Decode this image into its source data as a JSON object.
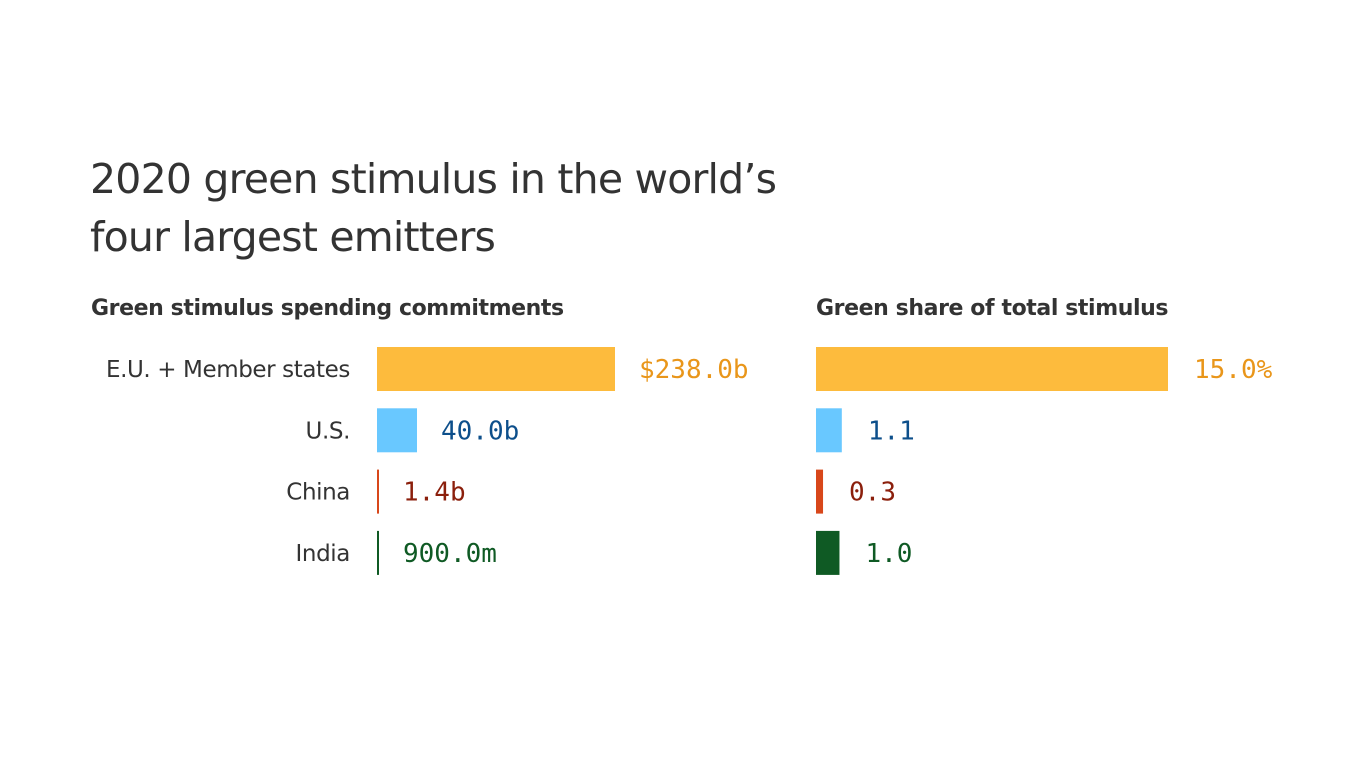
{
  "title": "2020 green stimulus in the world’s four largest emitters",
  "chart_data": [
    {
      "type": "bar",
      "orientation": "horizontal",
      "title": "Green stimulus spending commitments",
      "unit": "USD",
      "categories": [
        "E.U. + Member states",
        "U.S.",
        "China",
        "India"
      ],
      "values": [
        238000000000,
        40000000000,
        1400000000,
        900000000
      ],
      "value_labels": [
        "$238.0b",
        "40.0b",
        "1.4b",
        "900.0m"
      ],
      "colors": [
        "#FDBB3D",
        "#69C8FF",
        "#D8471A",
        "#0F5A24"
      ],
      "label_colors": [
        "#E9961A",
        "#0D4F8B",
        "#8B1F0C",
        "#0F5A24"
      ]
    },
    {
      "type": "bar",
      "orientation": "horizontal",
      "title": "Green share of total stimulus",
      "unit": "%",
      "categories": [
        "E.U. + Member states",
        "U.S.",
        "China",
        "India"
      ],
      "values": [
        15.0,
        1.1,
        0.3,
        1.0
      ],
      "value_labels": [
        "15.0%",
        "1.1",
        "0.3",
        "1.0"
      ],
      "colors": [
        "#FDBB3D",
        "#69C8FF",
        "#D8471A",
        "#0F5A24"
      ],
      "label_colors": [
        "#E9961A",
        "#0D4F8B",
        "#8B1F0C",
        "#0F5A24"
      ]
    }
  ]
}
